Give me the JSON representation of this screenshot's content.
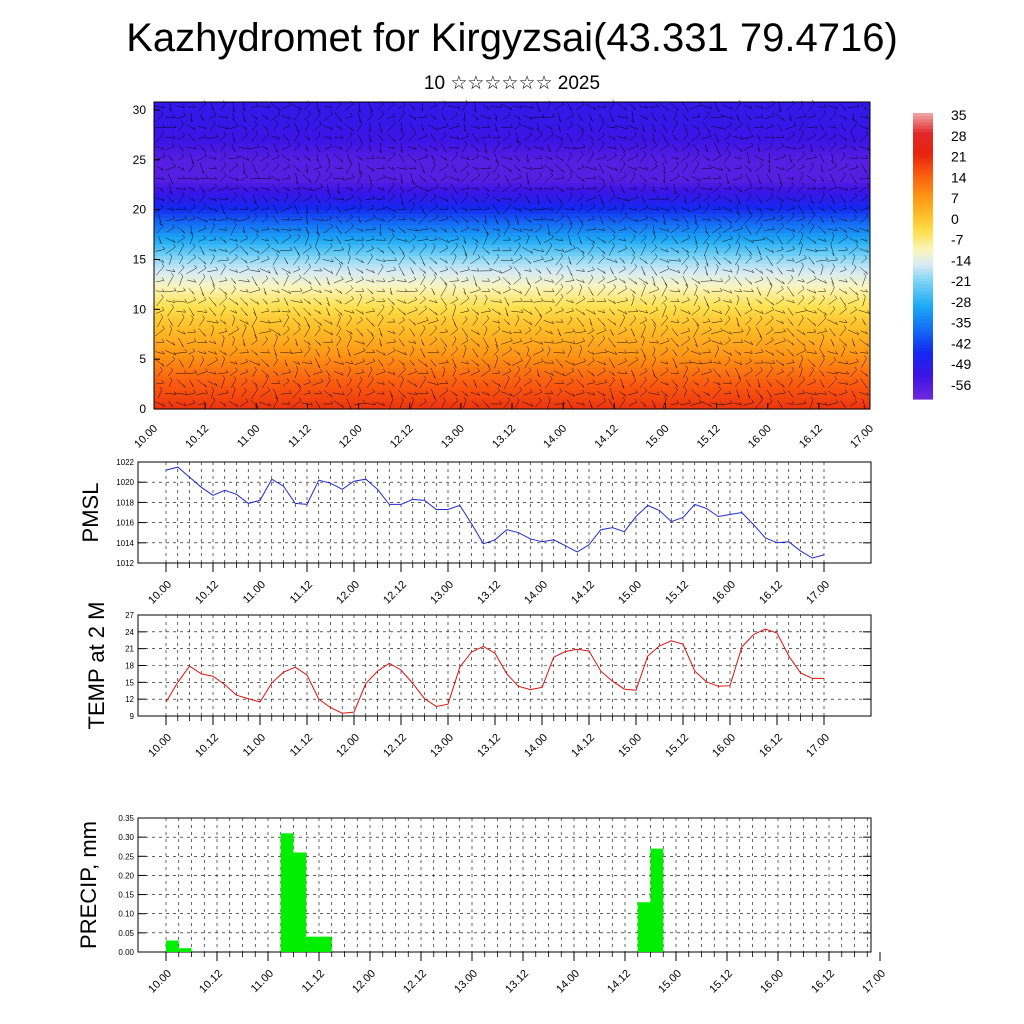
{
  "header": {
    "title": "Kazhydromet for Kirgyzsai(43.331 79.4716)",
    "subtitle": "10 ☆☆☆☆☆☆ 2025"
  },
  "colors": {
    "pmsl_line": "#1f2ccf",
    "temp_line": "#e01010",
    "precip_bar": "#00ee00",
    "wind_barb": "#000000"
  },
  "chart_data": [
    {
      "id": "cross-section",
      "type": "heatmap",
      "title": "",
      "xlabel": "",
      "ylabel": "",
      "x_ticks": [
        "10.00",
        "10.12",
        "11.00",
        "11.12",
        "12.00",
        "12.12",
        "13.00",
        "13.12",
        "14.00",
        "14.12",
        "15.00",
        "15.12",
        "16.00",
        "16.12",
        "17.00"
      ],
      "y_ticks": [
        0,
        5,
        10,
        15,
        20,
        25,
        30
      ],
      "ylim": [
        0,
        30.8
      ],
      "colorbar_labels": [
        35,
        28,
        21,
        14,
        7,
        0,
        -7,
        -14,
        -21,
        -28,
        -35,
        -42,
        -49,
        -56
      ],
      "temperature_by_level": [
        {
          "level": 0,
          "value": 22
        },
        {
          "level": 3,
          "value": 16
        },
        {
          "level": 6,
          "value": 8
        },
        {
          "level": 9,
          "value": 1
        },
        {
          "level": 12,
          "value": -8
        },
        {
          "level": 15,
          "value": -18
        },
        {
          "level": 17,
          "value": -28
        },
        {
          "level": 19,
          "value": -38
        },
        {
          "level": 21,
          "value": -48
        },
        {
          "level": 23,
          "value": -56
        },
        {
          "level": 25,
          "value": -56
        },
        {
          "level": 27,
          "value": -52
        },
        {
          "level": 30,
          "value": -50
        }
      ],
      "overlay": "wind barbs"
    },
    {
      "id": "pmsl",
      "type": "line",
      "ylabel": "PMSL",
      "ylim": [
        1012,
        1022
      ],
      "y_ticks": [
        1012,
        1014,
        1016,
        1018,
        1020,
        1022
      ],
      "x_ticks": [
        "10.00",
        "10.12",
        "11.00",
        "11.12",
        "12.00",
        "12.12",
        "13.00",
        "13.12",
        "14.00",
        "14.12",
        "15.00",
        "15.12",
        "16.00",
        "16.12",
        "17.00"
      ],
      "values": [
        1021.2,
        1021.5,
        1020.5,
        1019.5,
        1018.7,
        1019.2,
        1018.8,
        1017.9,
        1018.2,
        1020.3,
        1019.6,
        1017.9,
        1017.8,
        1020.2,
        1019.9,
        1019.3,
        1020.1,
        1020.3,
        1019.3,
        1017.8,
        1017.8,
        1018.3,
        1018.2,
        1017.3,
        1017.3,
        1017.7,
        1015.9,
        1013.9,
        1014.3,
        1015.3,
        1015.0,
        1014.4,
        1014.1,
        1014.3,
        1013.7,
        1013.1,
        1013.8,
        1015.3,
        1015.5,
        1015.1,
        1016.6,
        1017.7,
        1017.2,
        1016.1,
        1016.5,
        1017.8,
        1017.4,
        1016.6,
        1016.8,
        1017.0,
        1015.8,
        1014.5,
        1014.0,
        1014.1,
        1013.2,
        1012.5,
        1012.8
      ]
    },
    {
      "id": "temp",
      "type": "line",
      "ylabel": "TEMP at 2 M",
      "ylim": [
        9,
        27
      ],
      "y_ticks": [
        9,
        12,
        15,
        18,
        21,
        24,
        27
      ],
      "x_ticks": [
        "10.00",
        "10.12",
        "11.00",
        "11.12",
        "12.00",
        "12.12",
        "13.00",
        "13.12",
        "14.00",
        "14.12",
        "15.00",
        "15.12",
        "16.00",
        "16.12",
        "17.00"
      ],
      "values": [
        11.5,
        15.0,
        17.9,
        16.5,
        16.1,
        14.6,
        12.7,
        12.1,
        11.5,
        14.9,
        16.8,
        17.7,
        16.3,
        12.0,
        10.5,
        9.5,
        9.7,
        14.8,
        17.0,
        18.4,
        17.2,
        14.8,
        12.1,
        10.7,
        11.1,
        17.7,
        20.4,
        21.4,
        20.2,
        16.5,
        14.3,
        13.7,
        14.1,
        19.5,
        20.5,
        20.9,
        20.6,
        17.0,
        15.2,
        13.8,
        13.6,
        19.7,
        21.5,
        22.4,
        21.8,
        17.0,
        15.1,
        14.3,
        14.4,
        21.3,
        23.5,
        24.5,
        23.8,
        19.7,
        16.7,
        15.7,
        15.7
      ]
    },
    {
      "id": "precip",
      "type": "bar",
      "ylabel": "PRECIP, mm",
      "ylim": [
        0,
        0.35
      ],
      "y_ticks": [
        "0.00",
        "0.05",
        "0.10",
        "0.15",
        "0.20",
        "0.25",
        "0.30",
        "0.35"
      ],
      "x_ticks": [
        "10.00",
        "10.12",
        "11.00",
        "11.12",
        "12.00",
        "12.12",
        "13.00",
        "13.12",
        "14.00",
        "14.12",
        "15.00",
        "15.12",
        "16.00",
        "16.12",
        "17.00"
      ],
      "values": [
        0.03,
        0.01,
        0,
        0,
        0,
        0,
        0,
        0,
        0,
        0.31,
        0.26,
        0.04,
        0.04,
        0,
        0,
        0,
        0,
        0,
        0,
        0,
        0,
        0,
        0,
        0,
        0,
        0,
        0,
        0,
        0,
        0,
        0,
        0,
        0,
        0,
        0,
        0,
        0,
        0.13,
        0.27,
        0,
        0,
        0,
        0,
        0,
        0,
        0,
        0,
        0,
        0,
        0,
        0,
        0,
        0,
        0,
        0,
        0,
        0
      ]
    }
  ]
}
